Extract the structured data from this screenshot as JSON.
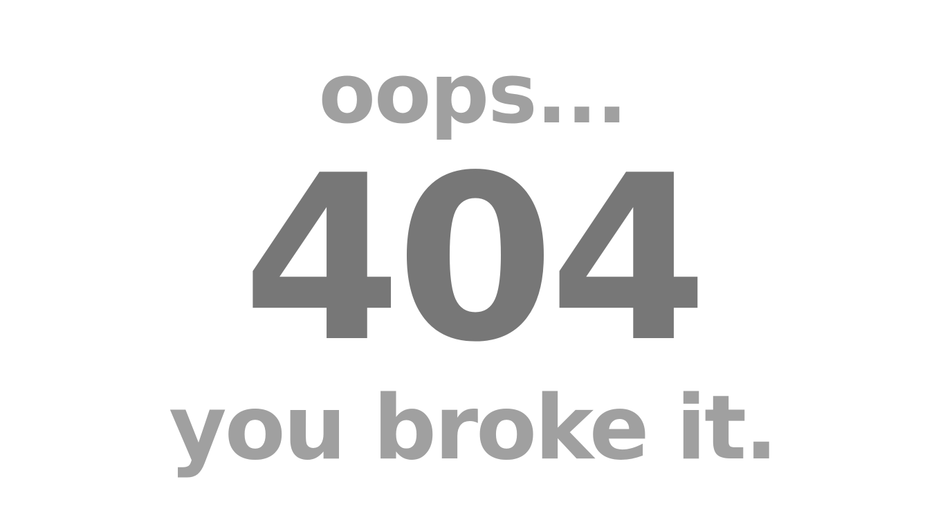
{
  "error_page": {
    "exclamation": "oops...",
    "status_code": "404",
    "message": "you broke it."
  },
  "colors": {
    "background": "#ffffff",
    "light_text": "#a0a0a0",
    "dark_text": "#777777"
  }
}
